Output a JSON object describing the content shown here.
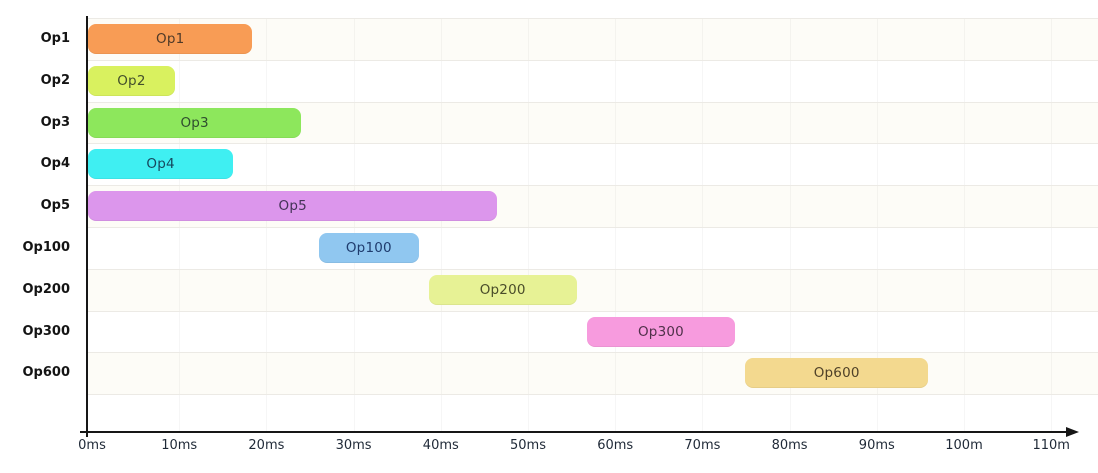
{
  "chart_data": {
    "type": "bar",
    "subtype": "gantt-timeline",
    "orientation": "horizontal",
    "unit": "ms",
    "grid": "faint horizontal row separators, very faint vertical gridlines",
    "legend": "none",
    "x_axis": {
      "tick_values": [
        0,
        10,
        20,
        30,
        40,
        50,
        60,
        70,
        80,
        90,
        100,
        110
      ],
      "tick_labels": [
        "0ms",
        "10ms",
        "20ms",
        "30ms",
        "40ms",
        "50ms",
        "60ms",
        "70ms",
        "80ms",
        "90ms",
        "100m",
        "110m"
      ],
      "xlim": [
        0,
        113
      ],
      "arrow": "right"
    },
    "rows": [
      {
        "label": "Op1",
        "bar_label": "Op1",
        "start_ms": 0,
        "end_ms": 18.4,
        "color": "#F89C55",
        "label_color": "#4f3a28"
      },
      {
        "label": "Op2",
        "bar_label": "Op2",
        "start_ms": 0,
        "end_ms": 9.5,
        "color": "#D9F15F",
        "label_color": "#44502c"
      },
      {
        "label": "Op3",
        "bar_label": "Op3",
        "start_ms": 0,
        "end_ms": 24,
        "color": "#8DE75C",
        "label_color": "#2f4d2f"
      },
      {
        "label": "Op4",
        "bar_label": "Op4",
        "start_ms": 0,
        "end_ms": 16.2,
        "color": "#3FEFF2",
        "label_color": "#16485e"
      },
      {
        "label": "Op5",
        "bar_label": "Op5",
        "start_ms": 0,
        "end_ms": 46.5,
        "color": "#DC96EC",
        "label_color": "#433356"
      },
      {
        "label": "Op100",
        "bar_label": "Op100",
        "start_ms": 26,
        "end_ms": 37.5,
        "color": "#90C7F0",
        "label_color": "#1f3c6e"
      },
      {
        "label": "Op200",
        "bar_label": "Op200",
        "start_ms": 38.6,
        "end_ms": 55.6,
        "color": "#E7F295",
        "label_color": "#4a4d2a"
      },
      {
        "label": "Op300",
        "bar_label": "Op300",
        "start_ms": 56.8,
        "end_ms": 73.7,
        "color": "#F79BDE",
        "label_color": "#50314a"
      },
      {
        "label": "Op600",
        "bar_label": "Op600",
        "start_ms": 74.9,
        "end_ms": 95.9,
        "color": "#F3D98F",
        "label_color": "#4f4128"
      }
    ],
    "colors": {
      "background": "#ffffff",
      "axis": "#161616",
      "row_separator": "#eceae5",
      "row_band_alt": "#fdfcf7",
      "tick_text": "#1f2937",
      "row_label_text": "#141414"
    }
  }
}
